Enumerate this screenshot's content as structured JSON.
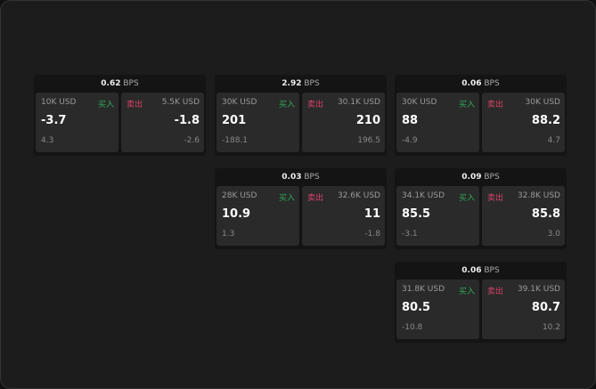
{
  "buy_label": "买入",
  "sell_label": "卖出",
  "unit": "BPS",
  "colors": {
    "buy": "#2fa85a",
    "sell": "#d8416a"
  },
  "cards": [
    {
      "spread": "0.62",
      "bid": {
        "size": "10K USD",
        "price": "-3.7",
        "change": "4.3"
      },
      "ask": {
        "size": "5.5K USD",
        "price": "-1.8",
        "change": "-2.6"
      }
    },
    {
      "spread": "2.92",
      "bid": {
        "size": "30K USD",
        "price": "201",
        "change": "-188.1"
      },
      "ask": {
        "size": "30.1K USD",
        "price": "210",
        "change": "196.5"
      }
    },
    {
      "spread": "0.06",
      "bid": {
        "size": "30K USD",
        "price": "88",
        "change": "-4.9"
      },
      "ask": {
        "size": "30K USD",
        "price": "88.2",
        "change": "4.7"
      }
    },
    {
      "spread": "0.03",
      "bid": {
        "size": "28K USD",
        "price": "10.9",
        "change": "1.3"
      },
      "ask": {
        "size": "32.6K USD",
        "price": "11",
        "change": "-1.8"
      }
    },
    {
      "spread": "0.09",
      "bid": {
        "size": "34.1K USD",
        "price": "85.5",
        "change": "-3.1"
      },
      "ask": {
        "size": "32.8K USD",
        "price": "85.8",
        "change": "3.0"
      }
    },
    {
      "spread": "0.06",
      "bid": {
        "size": "31.8K USD",
        "price": "80.5",
        "change": "-10.8"
      },
      "ask": {
        "size": "39.1K USD",
        "price": "80.7",
        "change": "10.2"
      }
    }
  ]
}
